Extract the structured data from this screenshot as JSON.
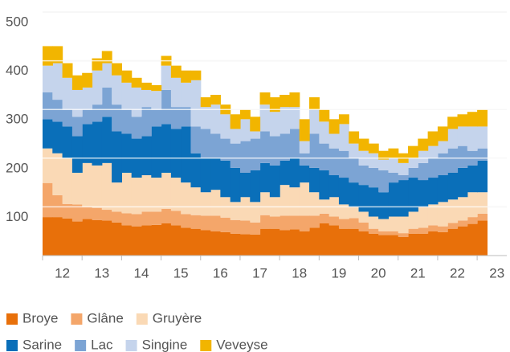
{
  "chart_data": {
    "type": "stacked-step-area",
    "x": [
      12,
      12.25,
      12.5,
      12.75,
      13,
      13.25,
      13.5,
      13.75,
      14,
      14.25,
      14.5,
      14.75,
      15,
      15.25,
      15.5,
      15.75,
      16,
      16.25,
      16.5,
      16.75,
      17,
      17.25,
      17.5,
      17.75,
      18,
      18.25,
      18.5,
      18.75,
      19,
      19.25,
      19.5,
      19.75,
      20,
      20.25,
      20.5,
      20.75,
      21,
      21.25,
      21.5,
      21.75,
      22,
      22.25,
      22.5,
      22.75,
      23
    ],
    "series": [
      {
        "name": "Broye",
        "color": "#e8700a",
        "values": [
          79,
          79,
          76,
          70,
          75,
          73,
          72,
          68,
          62,
          60,
          62,
          63,
          66,
          62,
          57,
          55,
          52,
          50,
          48,
          45,
          44,
          43,
          55,
          55,
          52,
          54,
          50,
          57,
          66,
          62,
          55,
          55,
          50,
          45,
          42,
          42,
          38,
          45,
          45,
          50,
          48,
          55,
          60,
          65,
          72
        ]
      },
      {
        "name": "Glâne",
        "color": "#f4a66a",
        "values": [
          70,
          45,
          30,
          35,
          25,
          25,
          22,
          22,
          25,
          25,
          28,
          27,
          30,
          30,
          28,
          28,
          30,
          32,
          30,
          28,
          28,
          25,
          28,
          25,
          30,
          28,
          32,
          25,
          20,
          18,
          20,
          22,
          18,
          10,
          8,
          8,
          8,
          10,
          12,
          12,
          12,
          12,
          12,
          14,
          14
        ]
      },
      {
        "name": "Gruyère",
        "color": "#fad9b5",
        "values": [
          71,
          86,
          94,
          65,
          90,
          87,
          96,
          60,
          83,
          75,
          75,
          70,
          74,
          68,
          65,
          57,
          48,
          53,
          42,
          37,
          48,
          42,
          47,
          40,
          63,
          58,
          68,
          48,
          29,
          40,
          30,
          23,
          22,
          25,
          25,
          30,
          34,
          35,
          43,
          43,
          50,
          48,
          48,
          51,
          44
        ]
      },
      {
        "name": "Sarine",
        "color": "#0a6fb9",
        "values": [
          60,
          65,
          65,
          75,
          80,
          90,
          95,
          105,
          80,
          80,
          80,
          105,
          100,
          100,
          115,
          70,
          70,
          65,
          75,
          70,
          50,
          65,
          60,
          65,
          50,
          60,
          35,
          50,
          60,
          45,
          55,
          50,
          55,
          60,
          55,
          70,
          75,
          70,
          55,
          55,
          55,
          55,
          60,
          55,
          65
        ]
      },
      {
        "name": "Lac",
        "color": "#7ca4d4",
        "values": [
          55,
          45,
          35,
          40,
          30,
          35,
          60,
          55,
          50,
          45,
          60,
          35,
          70,
          45,
          40,
          55,
          60,
          50,
          45,
          50,
          65,
          65,
          65,
          60,
          55,
          60,
          25,
          70,
          55,
          55,
          55,
          50,
          40,
          40,
          45,
          20,
          10,
          20,
          35,
          40,
          45,
          50,
          45,
          30,
          25
        ]
      },
      {
        "name": "Singine",
        "color": "#c5d4ec",
        "values": [
          55,
          75,
          65,
          55,
          45,
          70,
          50,
          60,
          55,
          60,
          35,
          38,
          50,
          60,
          50,
          95,
          45,
          60,
          50,
          30,
          45,
          15,
          55,
          50,
          55,
          45,
          25,
          50,
          45,
          30,
          55,
          30,
          30,
          30,
          22,
          30,
          25,
          20,
          25,
          25,
          25,
          40,
          40,
          50,
          45
        ]
      },
      {
        "name": "Veveyse",
        "color": "#f2b500",
        "values": [
          40,
          35,
          30,
          30,
          30,
          25,
          25,
          25,
          25,
          20,
          15,
          12,
          20,
          25,
          25,
          20,
          20,
          20,
          20,
          30,
          20,
          30,
          25,
          30,
          25,
          30,
          45,
          25,
          25,
          30,
          20,
          25,
          25,
          20,
          18,
          20,
          20,
          25,
          25,
          30,
          30,
          25,
          25,
          30,
          35
        ]
      }
    ],
    "xlim": [
      12,
      23.75
    ],
    "xticks": [
      12,
      13,
      14,
      15,
      16,
      17,
      18,
      19,
      20,
      21,
      22,
      23
    ],
    "ylim": [
      0,
      500
    ],
    "yticks": [
      100,
      200,
      300,
      400,
      500
    ],
    "grid": true
  }
}
